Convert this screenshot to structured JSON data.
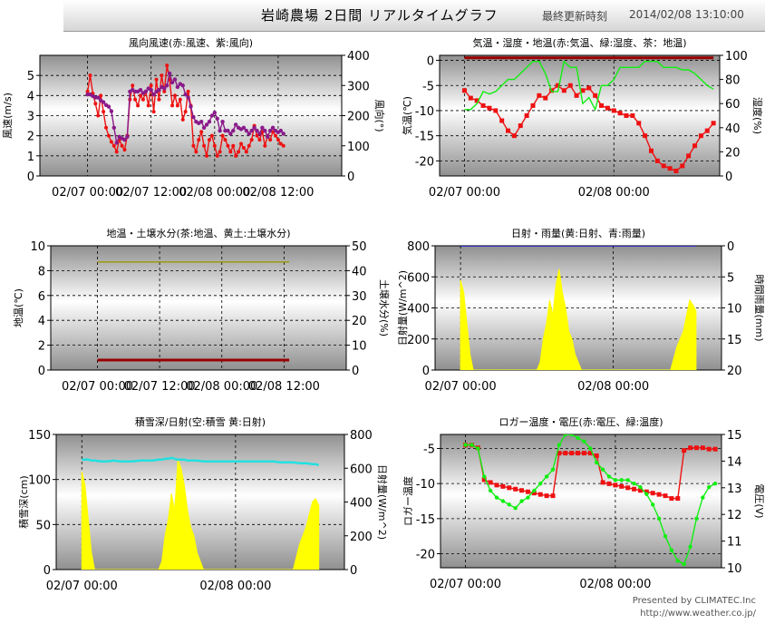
{
  "header": {
    "title": "岩崎農場  2日間  リアルタイムグラフ",
    "updated_label": "最終更新時刻",
    "updated_time": "2014/02/08 13:10:00"
  },
  "footer": {
    "presented": "Presented by CLIMATEC.Inc",
    "url": "http://www.weather.co.jp/"
  },
  "colors": {
    "red": "#ee1111",
    "purple": "#8a1a8a",
    "green": "#11ee11",
    "darkred": "#990000",
    "olive": "#999900",
    "yellow": "#ffff00",
    "cyan": "#22e0e0",
    "blue": "#1111cc"
  },
  "chart_data": [
    {
      "id": "wind",
      "type": "line",
      "title": "風向風速(赤:風速、紫:風向)",
      "ylabel": "風速(m/s)",
      "ylabel2": "風向(°)",
      "ylim": [
        0,
        6
      ],
      "yticks": [
        0,
        1,
        2,
        3,
        4,
        5
      ],
      "ylim2": [
        0,
        400
      ],
      "yticks2": [
        0,
        100,
        200,
        300,
        400
      ],
      "xticks": [
        "02/07 00:00",
        "02/07 12:00",
        "02/08 00:00",
        "02/08 12:00"
      ],
      "x_hours": [
        0,
        0.5,
        1,
        1.5,
        2,
        2.5,
        3,
        3.5,
        4,
        4.5,
        5,
        5.5,
        6,
        6.5,
        7,
        7.5,
        8,
        8.5,
        9,
        9.5,
        10,
        10.5,
        11,
        11.5,
        12,
        12.5,
        13,
        13.5,
        14,
        14.5,
        15,
        15.5,
        16,
        16.5,
        17,
        17.5,
        18,
        18.5,
        19,
        19.5,
        20,
        20.5,
        21,
        21.5,
        22,
        22.5,
        23,
        23.5,
        24,
        24.5,
        25,
        25.5,
        26,
        26.5,
        27,
        27.5,
        28,
        28.5,
        29,
        29.5,
        30,
        30.5,
        31,
        31.5,
        32,
        32.5,
        33,
        33.5,
        34,
        34.5,
        35,
        35.5,
        36,
        36.5,
        37
      ],
      "series": [
        {
          "axis": 1,
          "marker": "dot",
          "color": "#ee1111",
          "values": [
            4.2,
            5.0,
            4.1,
            3.6,
            3.0,
            4.0,
            3.2,
            2.4,
            2.0,
            1.7,
            1.5,
            1.2,
            1.8,
            1.5,
            1.3,
            2.0,
            3.8,
            4.5,
            3.8,
            3.5,
            4.0,
            3.8,
            4.2,
            3.5,
            4.5,
            3.2,
            4.8,
            3.8,
            5.0,
            4.2,
            5.5,
            4.8,
            3.5,
            4.0,
            3.5,
            3.8,
            2.8,
            3.2,
            4.2,
            3.5,
            1.5,
            1.2,
            1.8,
            2.2,
            1.5,
            1.0,
            1.8,
            2.0,
            1.5,
            1.0,
            1.2,
            2.0,
            1.8,
            1.5,
            1.2,
            1.5,
            1.0,
            1.2,
            1.6,
            1.4,
            1.2,
            1.5,
            1.8,
            2.5,
            2.0,
            1.8,
            2.2,
            1.5,
            2.0,
            1.8,
            2.2,
            2.0,
            1.8,
            1.6,
            1.5
          ]
        },
        {
          "axis": 2,
          "marker": "diamond",
          "color": "#8a1a8a",
          "values": [
            270,
            270,
            265,
            260,
            260,
            250,
            245,
            235,
            230,
            215,
            160,
            110,
            130,
            125,
            120,
            130,
            280,
            285,
            280,
            280,
            285,
            275,
            280,
            290,
            285,
            270,
            280,
            285,
            295,
            290,
            300,
            340,
            310,
            320,
            295,
            305,
            300,
            270,
            260,
            230,
            195,
            180,
            175,
            180,
            160,
            170,
            180,
            200,
            210,
            190,
            150,
            180,
            150,
            150,
            140,
            150,
            170,
            160,
            155,
            160,
            150,
            140,
            150,
            160,
            150,
            140,
            160,
            150,
            130,
            150,
            160,
            150,
            145,
            150,
            140
          ]
        }
      ]
    },
    {
      "id": "air",
      "type": "line",
      "title": "気温・湿度・地温(赤:気温、緑:湿度、茶：地温)",
      "ylabel": "気温(℃)",
      "ylabel2": "湿度(%)",
      "ylim": [
        -23,
        1
      ],
      "yticks": [
        -20,
        -15,
        -10,
        -5,
        0
      ],
      "ylim2": [
        0,
        100
      ],
      "yticks2": [
        0,
        20,
        40,
        60,
        80,
        100
      ],
      "xticks": [
        "02/07 00:00",
        "02/08 00:00"
      ],
      "x_hours": [
        0,
        1,
        2,
        3,
        4,
        5,
        6,
        7,
        8,
        9,
        10,
        11,
        12,
        13,
        14,
        15,
        16,
        17,
        18,
        19,
        20,
        21,
        22,
        23,
        24,
        25,
        26,
        27,
        28,
        29,
        30,
        31,
        32,
        33,
        34,
        35,
        36,
        37,
        38,
        39,
        40
      ],
      "series": [
        {
          "axis": 1,
          "marker": "square",
          "color": "#ee1111",
          "values": [
            -6,
            -7.5,
            -8,
            -9,
            -9.5,
            -10,
            -12,
            -14,
            -15,
            -13,
            -11,
            -9,
            -7,
            -7.5,
            -6,
            -5,
            -6,
            -5,
            -7,
            -6,
            -5.5,
            -7,
            -9,
            -9.5,
            -10,
            -10.5,
            -11,
            -11,
            -12.5,
            -15,
            -18,
            -20,
            -21,
            -21.5,
            -22,
            -21,
            -19,
            -17,
            -15,
            -14,
            -12.5
          ]
        },
        {
          "axis": 2,
          "marker": "none",
          "color": "#11ee11",
          "values": [
            55,
            55,
            60,
            70,
            68,
            70,
            75,
            80,
            80,
            85,
            90,
            95,
            95,
            85,
            70,
            70,
            95,
            90,
            90,
            60,
            65,
            55,
            75,
            75,
            80,
            90,
            90,
            90,
            90,
            95,
            95,
            95,
            90,
            90,
            90,
            88,
            88,
            85,
            80,
            75,
            72
          ]
        },
        {
          "axis": 1,
          "marker": "none",
          "color": "#990000",
          "values": [
            0.5,
            0.5,
            0.5,
            0.5,
            0.5,
            0.5,
            0.5,
            0.5,
            0.5,
            0.5,
            0.5,
            0.5,
            0.5,
            0.5,
            0.5,
            0.5,
            0.5,
            0.5,
            0.5,
            0.5,
            0.5,
            0.5,
            0.5,
            0.5,
            0.5,
            0.5,
            0.5,
            0.5,
            0.5,
            0.5,
            0.5,
            0.5,
            0.5,
            0.5,
            0.5,
            0.5,
            0.5,
            0.5,
            0.5,
            0.5,
            0.5
          ]
        }
      ]
    },
    {
      "id": "soil",
      "type": "line",
      "title": "地温・土壌水分(茶:地温、黄土:土壌水分)",
      "ylabel": "地温(℃)",
      "ylabel2": "土壌水分(%)",
      "ylim": [
        0,
        10
      ],
      "yticks": [
        0,
        2,
        4,
        6,
        8,
        10
      ],
      "ylim2": [
        0,
        50
      ],
      "yticks2": [
        0,
        10,
        20,
        30,
        40,
        50
      ],
      "xticks": [
        "02/07 00:00",
        "02/07 12:00",
        "02/08 00:00",
        "02/08 12:00"
      ],
      "x_hours": [
        0,
        37
      ],
      "series": [
        {
          "axis": 1,
          "marker": "none",
          "color": "#990000",
          "values": [
            0.8,
            0.8
          ]
        },
        {
          "axis": 2,
          "marker": "none",
          "color": "#999900",
          "values": [
            43.5,
            43.5
          ]
        }
      ]
    },
    {
      "id": "solar",
      "type": "area",
      "title": "日射・雨量(黄:日射、青:雨量)",
      "ylabel": "日射量(W/m^2)",
      "ylabel2": "時間雨量(mm)",
      "ylim": [
        0,
        800
      ],
      "yticks": [
        0,
        200,
        400,
        600,
        800
      ],
      "ylim2": [
        20,
        0
      ],
      "yticks2": [
        0,
        5,
        10,
        15,
        20
      ],
      "xticks": [
        "02/07 00:00",
        "02/08 00:00"
      ],
      "x_hours": [
        0,
        0.5,
        1,
        1.5,
        2,
        3,
        4,
        5,
        6,
        7,
        8,
        9,
        10,
        11,
        12,
        12.5,
        13,
        13.5,
        14,
        14.5,
        15,
        15.5,
        16,
        16.5,
        17,
        17.5,
        18,
        19,
        20,
        21,
        22,
        23,
        24,
        25,
        26,
        27,
        28,
        29,
        30,
        31,
        32,
        33,
        34,
        35,
        36,
        36.5,
        37
      ],
      "series": [
        {
          "axis": 1,
          "marker": "none",
          "color": "#ffff00",
          "values": [
            580,
            500,
            300,
            100,
            0,
            0,
            0,
            0,
            0,
            0,
            0,
            0,
            0,
            0,
            0,
            50,
            200,
            300,
            450,
            350,
            550,
            650,
            500,
            400,
            250,
            200,
            100,
            0,
            0,
            0,
            0,
            0,
            0,
            0,
            0,
            0,
            0,
            0,
            0,
            0,
            0,
            0,
            150,
            250,
            450,
            420,
            380
          ]
        },
        {
          "axis": 2,
          "marker": "none",
          "color": "#1111cc",
          "values": [
            0,
            0,
            0,
            0,
            0,
            0,
            0,
            0,
            0,
            0,
            0,
            0,
            0,
            0,
            0,
            0,
            0,
            0,
            0,
            0,
            0,
            0,
            0,
            0,
            0,
            0,
            0,
            0,
            0,
            0,
            0,
            0,
            0,
            0,
            0,
            0,
            0,
            0,
            0,
            0,
            0,
            0,
            0,
            0,
            0,
            0,
            0
          ]
        }
      ]
    },
    {
      "id": "snow",
      "type": "area",
      "title": "積雪深/日射(空:積雪 黄:日射)",
      "ylabel": "積雪深(cm)",
      "ylabel2": "日射量(W/m^2)",
      "ylim": [
        0,
        150
      ],
      "yticks": [
        0,
        50,
        100,
        150
      ],
      "ylim2": [
        0,
        800
      ],
      "yticks2": [
        0,
        200,
        400,
        600,
        800
      ],
      "xticks": [
        "02/07 00:00",
        "02/08 00:00"
      ],
      "x_hours": [
        0,
        0.5,
        1,
        1.5,
        2,
        3,
        4,
        5,
        6,
        7,
        8,
        9,
        10,
        11,
        12,
        12.5,
        13,
        13.5,
        14,
        14.5,
        15,
        15.5,
        16,
        16.5,
        17,
        17.5,
        18,
        19,
        20,
        21,
        22,
        23,
        24,
        25,
        26,
        27,
        28,
        29,
        30,
        31,
        32,
        33,
        34,
        35,
        36,
        36.5,
        37
      ],
      "series": [
        {
          "axis": 2,
          "marker": "none",
          "color": "#ffff00",
          "values": [
            580,
            500,
            300,
            100,
            0,
            0,
            0,
            0,
            0,
            0,
            0,
            0,
            0,
            0,
            0,
            50,
            200,
            300,
            450,
            350,
            650,
            600,
            500,
            350,
            250,
            200,
            100,
            0,
            0,
            0,
            0,
            0,
            0,
            0,
            0,
            0,
            0,
            0,
            0,
            0,
            0,
            0,
            150,
            250,
            400,
            420,
            380
          ]
        },
        {
          "axis": 1,
          "marker": "none",
          "color": "#22e0e0",
          "values": [
            122,
            122,
            122,
            121,
            121,
            120,
            120,
            121,
            120,
            120,
            120,
            121,
            121,
            121,
            122,
            122,
            123,
            123,
            124,
            123,
            122,
            122,
            122,
            121,
            121,
            121,
            121,
            120,
            120,
            120,
            120,
            120,
            120,
            120,
            120,
            120,
            120,
            120,
            120,
            119,
            119,
            119,
            118,
            118,
            117,
            117,
            116
          ]
        }
      ]
    },
    {
      "id": "logger",
      "type": "line",
      "title": "ロガー温度・電圧(赤:電圧、緑:温度)",
      "ylabel": "ロガー温度",
      "ylabel2": "電圧(V)",
      "ylim": [
        -22,
        -3
      ],
      "yticks": [
        -20,
        -15,
        -10,
        -5
      ],
      "ylim2": [
        10,
        15
      ],
      "yticks2": [
        10,
        11,
        12,
        13,
        14,
        15
      ],
      "xticks": [
        "02/07 00:00",
        "02/08 00:00"
      ],
      "x_hours": [
        0,
        1,
        2,
        3,
        4,
        5,
        6,
        7,
        8,
        9,
        10,
        11,
        12,
        13,
        14,
        15,
        16,
        17,
        18,
        19,
        20,
        21,
        22,
        23,
        24,
        25,
        26,
        27,
        28,
        29,
        30,
        31,
        32,
        33,
        34,
        35,
        36,
        37,
        38,
        39,
        40
      ],
      "series": [
        {
          "axis": 2,
          "marker": "square",
          "color": "#ee1111",
          "values": [
            14.6,
            14.6,
            14.5,
            13.3,
            13.2,
            13.1,
            13.05,
            13.0,
            12.95,
            12.9,
            12.85,
            12.8,
            12.75,
            12.7,
            12.7,
            14.3,
            14.3,
            14.3,
            14.3,
            14.3,
            14.3,
            14.2,
            13.2,
            13.15,
            13.1,
            13.05,
            13.0,
            12.95,
            12.9,
            12.85,
            12.8,
            12.75,
            12.7,
            12.6,
            12.6,
            14.4,
            14.5,
            14.5,
            14.5,
            14.45,
            14.45
          ]
        },
        {
          "axis": 1,
          "marker": "diamond",
          "color": "#11ee11",
          "values": [
            -4.5,
            -4.5,
            -5,
            -9,
            -11,
            -12,
            -12.5,
            -13,
            -13.5,
            -12.5,
            -12,
            -11,
            -10,
            -9,
            -8,
            -4.5,
            -3,
            -3,
            -3.5,
            -4,
            -5,
            -7,
            -8,
            -9,
            -9.5,
            -9.5,
            -9.5,
            -10,
            -10.5,
            -11.5,
            -13,
            -15,
            -17.5,
            -19.5,
            -21,
            -21.5,
            -19,
            -15,
            -12,
            -10.5,
            -10
          ]
        }
      ]
    }
  ]
}
